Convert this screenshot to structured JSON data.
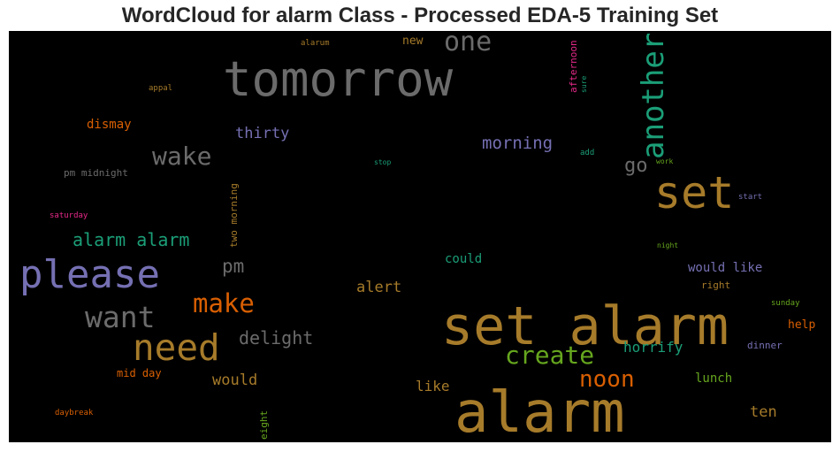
{
  "chart_data": {
    "type": "wordcloud",
    "title": "WordCloud for alarm Class - Processed EDA-5 Training Set",
    "colors": {
      "gray": "#6b6b6b",
      "gold": "#a67b2a",
      "purple": "#7570b3",
      "green": "#1b9e77",
      "orange": "#d95f02",
      "lime": "#66a61e",
      "magenta": "#e7298a",
      "background": "#000000"
    },
    "words": [
      {
        "text": "tomorrow",
        "color": "gray"
      },
      {
        "text": "one",
        "color": "gray"
      },
      {
        "text": "new",
        "color": "gold"
      },
      {
        "text": "alarum",
        "color": "gold"
      },
      {
        "text": "afternoon",
        "color": "magenta"
      },
      {
        "text": "sure",
        "color": "green"
      },
      {
        "text": "another",
        "color": "green"
      },
      {
        "text": "appal",
        "color": "gold"
      },
      {
        "text": "dismay",
        "color": "orange"
      },
      {
        "text": "thirty",
        "color": "purple"
      },
      {
        "text": "morning",
        "color": "purple"
      },
      {
        "text": "wake",
        "color": "gray"
      },
      {
        "text": "stop",
        "color": "green"
      },
      {
        "text": "add",
        "color": "green"
      },
      {
        "text": "work",
        "color": "lime"
      },
      {
        "text": "go",
        "color": "gray"
      },
      {
        "text": "pm midnight",
        "color": "gray"
      },
      {
        "text": "two morning",
        "color": "gold"
      },
      {
        "text": "set",
        "color": "gold"
      },
      {
        "text": "start",
        "color": "purple"
      },
      {
        "text": "saturday",
        "color": "magenta"
      },
      {
        "text": "alarm alarm",
        "color": "green"
      },
      {
        "text": "night",
        "color": "lime"
      },
      {
        "text": "please",
        "color": "purple"
      },
      {
        "text": "pm",
        "color": "gray"
      },
      {
        "text": "could",
        "color": "green"
      },
      {
        "text": "would like",
        "color": "purple"
      },
      {
        "text": "make",
        "color": "orange"
      },
      {
        "text": "alert",
        "color": "gold"
      },
      {
        "text": "right",
        "color": "gold"
      },
      {
        "text": "want",
        "color": "gray"
      },
      {
        "text": "set alarm",
        "color": "gold"
      },
      {
        "text": "sunday",
        "color": "lime"
      },
      {
        "text": "need",
        "color": "gold"
      },
      {
        "text": "delight",
        "color": "gray"
      },
      {
        "text": "help",
        "color": "orange"
      },
      {
        "text": "create",
        "color": "lime"
      },
      {
        "text": "horrify",
        "color": "green"
      },
      {
        "text": "dinner",
        "color": "purple"
      },
      {
        "text": "mid day",
        "color": "orange"
      },
      {
        "text": "would",
        "color": "gold"
      },
      {
        "text": "noon",
        "color": "orange"
      },
      {
        "text": "lunch",
        "color": "lime"
      },
      {
        "text": "like",
        "color": "gold"
      },
      {
        "text": "alarm",
        "color": "gold"
      },
      {
        "text": "ten",
        "color": "gold"
      },
      {
        "text": "daybreak",
        "color": "orange"
      },
      {
        "text": "eight",
        "color": "lime"
      }
    ]
  }
}
